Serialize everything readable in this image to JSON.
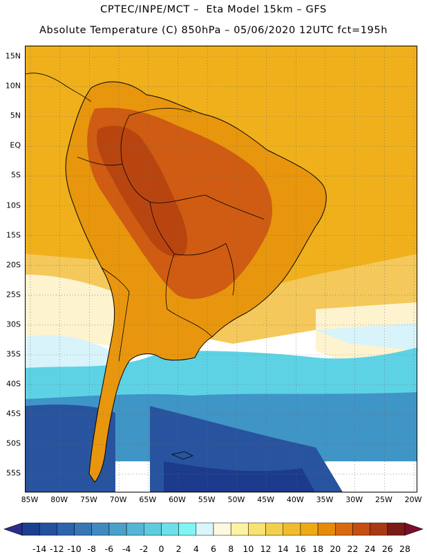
{
  "title_line1": "CPTEC/INPE/MCT –  Eta Model 15km – GFS",
  "title_line2": "Absolute Temperature (C) 850hPa – 05/06/2020 12UTC fct=195h",
  "lat_labels": [
    "15N",
    "10N",
    "5N",
    "EQ",
    "5S",
    "10S",
    "15S",
    "20S",
    "25S",
    "30S",
    "35S",
    "40S",
    "45S",
    "50S",
    "55S"
  ],
  "lon_labels": [
    "85W",
    "80W",
    "75W",
    "70W",
    "65W",
    "60W",
    "55W",
    "50W",
    "45W",
    "40W",
    "35W",
    "30W",
    "25W",
    "20W"
  ],
  "colorbar": {
    "labels": [
      "-14",
      "-12",
      "-10",
      "-8",
      "-6",
      "-4",
      "-2",
      "0",
      "2",
      "4",
      "6",
      "8",
      "10",
      "12",
      "14",
      "16",
      "18",
      "20",
      "22",
      "24",
      "26",
      "28"
    ],
    "colors": [
      "#1b3f8f",
      "#23509f",
      "#2c64ad",
      "#3777b6",
      "#3f8bbf",
      "#4aa0c8",
      "#55b5d4",
      "#5fcbe0",
      "#6ee0ea",
      "#7ff5f4",
      "#d9f6fb",
      "#fdf8e0",
      "#fbf2a4",
      "#f8e272",
      "#f4cf4e",
      "#f0bb2c",
      "#edaa14",
      "#e68a0a",
      "#d9690e",
      "#c64e10",
      "#a93813",
      "#7a1b18"
    ],
    "under_color": "#2a2d8a",
    "over_color": "#7b0e2a"
  },
  "map_colors": {
    "ocean_north": "#efb01c",
    "continent_warm": "#e8960d",
    "interior_hot": "#cf5c12",
    "core_hot": "#b8450f",
    "mid": "#f4c85a",
    "cream": "#fdf3cf",
    "pale_cyan": "#d8f3fa",
    "cyan": "#5ed2e5",
    "mid_blue": "#3f95c6",
    "deep_blue": "#28549f",
    "darkest_blue": "#1c3b8c"
  }
}
